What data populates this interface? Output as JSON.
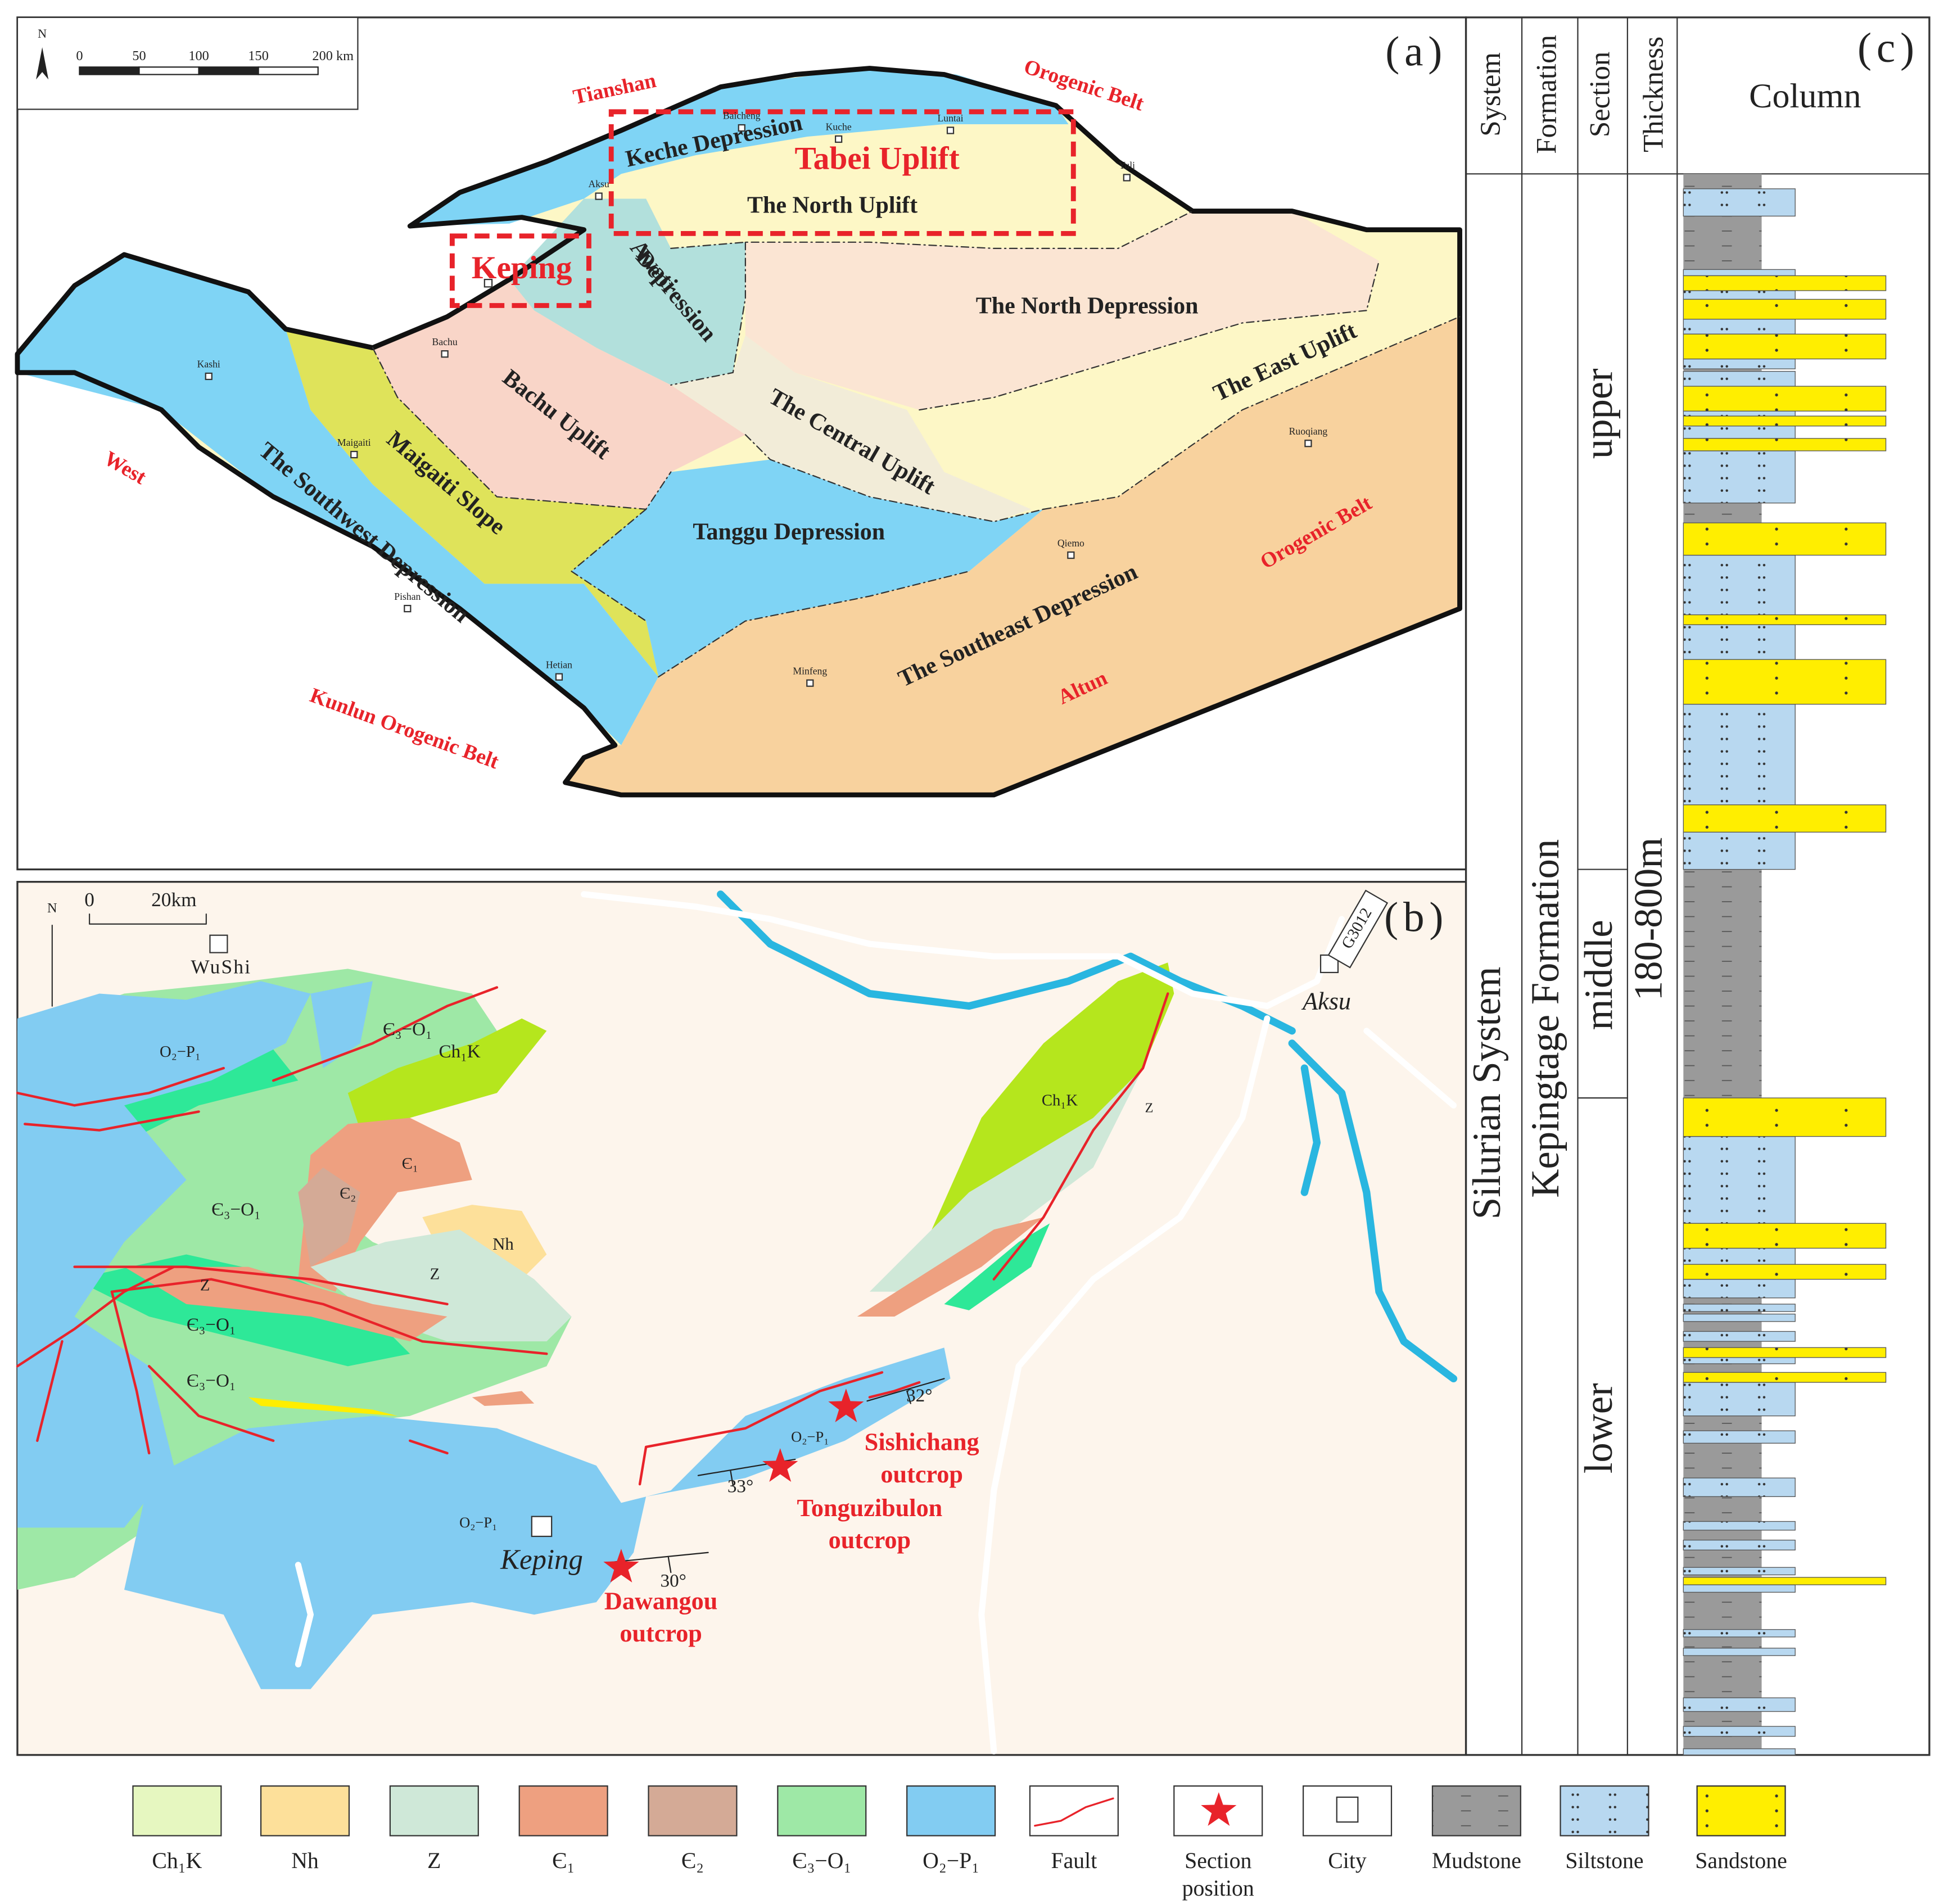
{
  "panel_a": {
    "label": "(a)",
    "north": "N",
    "scale_labels": [
      "0",
      "50",
      "100",
      "150",
      "200 km"
    ],
    "orogens": [
      "Tianshan",
      "Orogenic Belt",
      "West",
      "Kunlun Orogenic Belt",
      "Orogenic Belt",
      "Altun"
    ],
    "regions": [
      [
        "Keche Depression"
      ],
      [
        "The North Uplift"
      ],
      [
        "Awati",
        "Depression"
      ],
      [
        "The North Depression"
      ],
      [
        "Bachu Uplift"
      ],
      [
        "The Central Uplift"
      ],
      [
        "The East Uplift"
      ],
      [
        "Maigaiti Slope"
      ],
      [
        "The Southwest Depression"
      ],
      [
        "Tanggu Depression"
      ],
      [
        "The Southeast Depression"
      ]
    ],
    "study_areas": [
      "Tabei Uplift",
      "Keping"
    ],
    "cities": [
      "Baicheng",
      "Kuche",
      "Luntai",
      "Yuli",
      "Aksu",
      "Bachu",
      "Kashi",
      "Maigaiti",
      "Pishan",
      "Hetian",
      "Minfeng",
      "Qiemo",
      "Ruoqiang"
    ]
  },
  "panel_b": {
    "label": "(b)",
    "north": "N",
    "scale_labels": [
      "0",
      "20km"
    ],
    "cities": [
      "WuShi",
      "Aksu",
      "Keping"
    ],
    "road": "G3012",
    "units": [
      "O₂−P₁",
      "Є₃−O₁",
      "Ch₁K",
      "Є₁",
      "Є₂",
      "Є₃−O₁",
      "Nh",
      "Z",
      "Z",
      "Є₃−O₁",
      "Є₃−O₁",
      "O₂−P₁",
      "O₂−P₁",
      "Ch₁K",
      "Z"
    ],
    "dips": [
      "32°",
      "33°",
      "30°"
    ],
    "outcrops": [
      [
        "Sishichang",
        "outcrop"
      ],
      [
        "Tonguzibulon",
        "outcrop"
      ],
      [
        "Dawangou",
        "outcrop"
      ]
    ]
  },
  "panel_c": {
    "label": "(c)",
    "headers": [
      "System",
      "Formation",
      "Section",
      "Thickness",
      "Column"
    ],
    "system": "Silurian   System",
    "formation": "Kepingtage Formation",
    "sections": [
      "upper",
      "middle",
      "lower"
    ],
    "thickness": "180-800m"
  },
  "legend": [
    [
      "Ch₁K"
    ],
    [
      "Nh"
    ],
    [
      "Z"
    ],
    [
      "Є₁"
    ],
    [
      "Є₂"
    ],
    [
      "Є₃−O₁"
    ],
    [
      "O₂−P₁"
    ],
    [
      "Fault"
    ],
    [
      "Section",
      "position"
    ],
    [
      "City"
    ],
    [
      "Mudstone"
    ],
    [
      "Siltstone"
    ],
    [
      "Sandstone"
    ]
  ]
}
